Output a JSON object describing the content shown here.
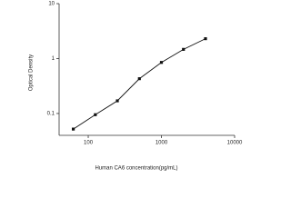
{
  "chart_data": {
    "type": "scatter",
    "line": true,
    "x_label": "Human CA6 concentration(pg/mL)",
    "y_label": "Optical Density",
    "x": [
      62.5,
      125,
      250,
      500,
      1000,
      2000,
      4000
    ],
    "series": [
      {
        "color": "#111111",
        "values": [
          0.052,
          0.095,
          0.17,
          0.43,
          0.85,
          1.47,
          2.3
        ]
      }
    ],
    "xscale": "log",
    "yscale": "log",
    "xlim": [
      40,
      10000
    ],
    "ylim": [
      0.04,
      10
    ],
    "xticks": [
      100,
      1000,
      10000
    ],
    "yticks": [
      0.1,
      1,
      10
    ]
  }
}
